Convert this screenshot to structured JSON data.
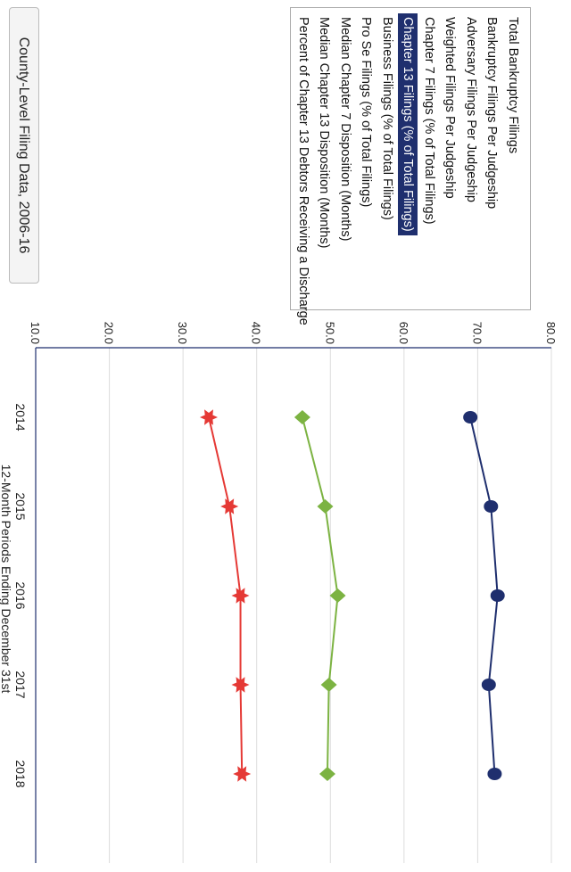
{
  "menu": {
    "items": [
      "Total Bankruptcy Filings",
      "Bankruptcy Filings Per Judgeship",
      "Adversary Filings Per Judgeship",
      "Weighted Filings Per Judgeship",
      "Chapter 7 Filings (% of Total Filings)",
      "Chapter 13 Filings (% of Total Filings)",
      "Business Filings (% of Total Filings)",
      "Pro Se Filings (% of Total Filings)",
      "Median Chapter 7 Disposition (Months)",
      "Median Chapter 13 Disposition (Months)",
      "Percent of Chapter 13 Debtors Receiving a Discharge"
    ],
    "selected": "Chapter 13 Filings (% of Total Filings)"
  },
  "county_button": "County-Level Filing Data, 2006-16",
  "chart_data": {
    "type": "line",
    "categories": [
      "2014",
      "2015",
      "2016",
      "2017",
      "2018"
    ],
    "xlabel": "12-Month Periods Ending December 31st",
    "ylim": [
      10,
      80
    ],
    "yticks": [
      "10.0",
      "20.0",
      "30.0",
      "40.0",
      "50.0",
      "60.0",
      "70.0",
      "80.0"
    ],
    "grid": true,
    "series": [
      {
        "color": "#1f2f6e",
        "marker": "circle",
        "values": [
          69.0,
          71.8,
          72.7,
          71.5,
          72.3
        ]
      },
      {
        "color": "#7cb342",
        "marker": "diamond",
        "values": [
          46.2,
          49.3,
          51.0,
          49.8,
          49.6
        ]
      },
      {
        "color": "#e53935",
        "marker": "star",
        "values": [
          33.5,
          36.3,
          37.8,
          37.8,
          38.0
        ]
      }
    ]
  }
}
